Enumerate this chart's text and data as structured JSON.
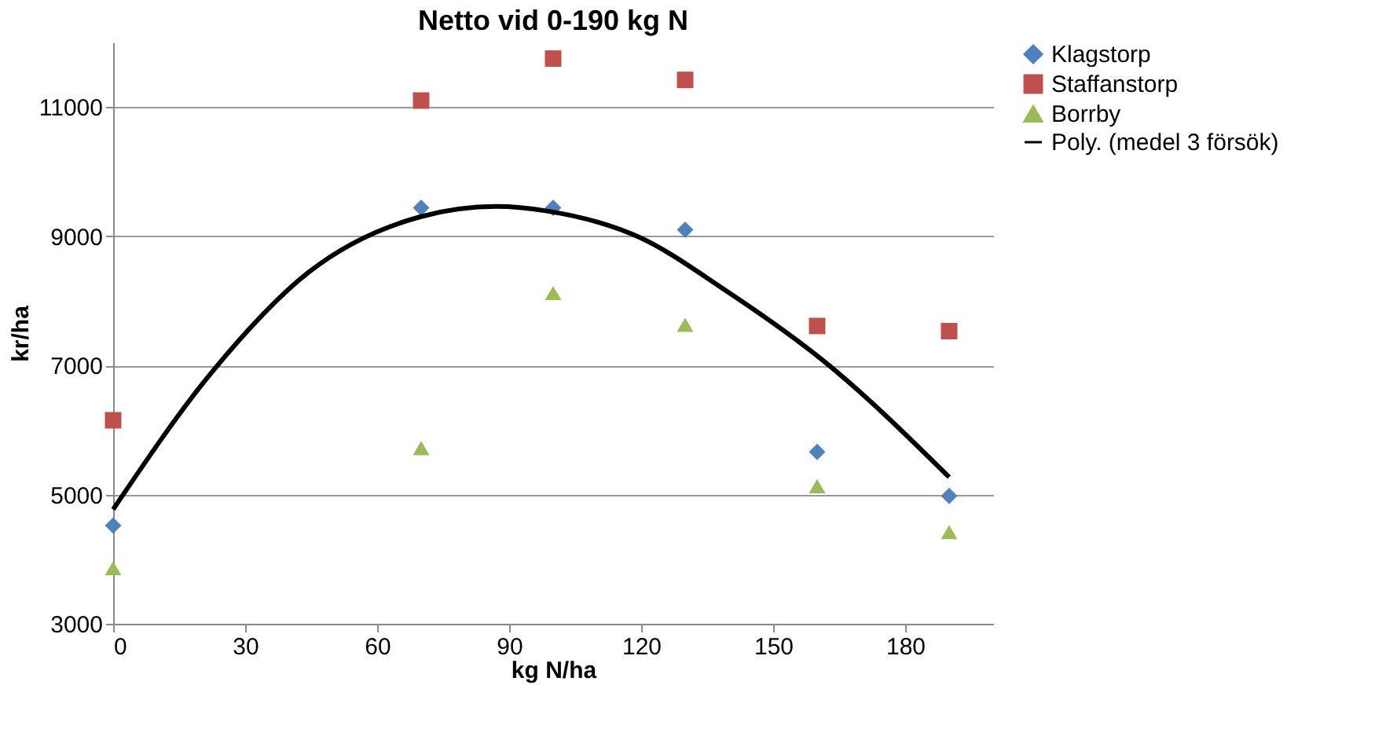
{
  "chart_data": {
    "type": "scatter",
    "title": "Netto vid 0-190 kg N",
    "xlabel": "kg N/ha",
    "ylabel": "kr/ha",
    "x": [
      0,
      70,
      100,
      130,
      160,
      190
    ],
    "series": [
      {
        "name": "Klagstorp",
        "color": "#4f81bd",
        "marker": "diamond",
        "values": [
          4520,
          9440,
          9440,
          9100,
          5660,
          4980
        ]
      },
      {
        "name": "Staffanstorp",
        "color": "#c0504d",
        "marker": "square",
        "values": [
          6150,
          11100,
          11750,
          11420,
          7610,
          7530
        ]
      },
      {
        "name": "Borrby",
        "color": "#9bbb59",
        "marker": "triangle",
        "values": [
          3860,
          5720,
          8120,
          7630,
          5130,
          4420
        ]
      },
      {
        "name": "Poly. (medel 3 försök)",
        "color": "#000000",
        "type": "line",
        "line_style": "solid",
        "x": [
          0,
          22.5,
          44.4,
          69.8,
          87.1,
          98.6,
          119.4,
          139,
          162,
          190
        ],
        "values": [
          4770,
          6900,
          8440,
          9300,
          9460,
          9390,
          8990,
          8170,
          7040,
          5270
        ]
      }
    ],
    "xlim": [
      0,
      200
    ],
    "xticks": [
      0,
      30,
      60,
      90,
      120,
      150,
      180
    ],
    "ylim": [
      3000,
      12000
    ],
    "yticks": [
      3000,
      5000,
      7000,
      9000,
      11000
    ],
    "grid": "y",
    "legend": "right"
  }
}
